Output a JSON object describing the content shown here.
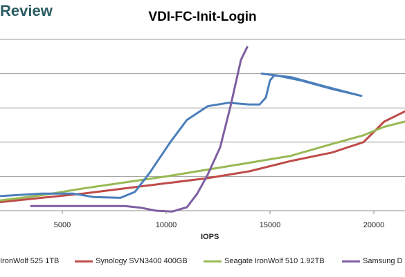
{
  "brand": {
    "text": "Review"
  },
  "chart_data": {
    "type": "line",
    "title": "VDI-FC-Init-Login",
    "xlabel": "IOPS",
    "ylabel": "",
    "x_ticks": [
      5000,
      10000,
      15000,
      20000
    ],
    "xlim": [
      2000,
      21500
    ],
    "ylim": [
      0,
      1
    ],
    "grid": "horizontal",
    "legend": "bottom",
    "series": [
      {
        "name": "IronWolf 525 1TB",
        "color": "#4a7ebb",
        "x": [
          2000,
          4000,
          5500,
          6500,
          7800,
          8500,
          9200,
          10200,
          11000,
          12000,
          13000,
          14000,
          14500,
          14800,
          15000,
          15200,
          16000,
          17500,
          19400,
          18000,
          16500,
          15300,
          14600
        ],
        "y": [
          0.085,
          0.1,
          0.1,
          0.08,
          0.075,
          0.11,
          0.22,
          0.4,
          0.53,
          0.61,
          0.63,
          0.62,
          0.62,
          0.66,
          0.76,
          0.79,
          0.78,
          0.73,
          0.67,
          0.71,
          0.76,
          0.79,
          0.8
        ]
      },
      {
        "name": "Synology SVN3400 400GB",
        "color": "#be4b48",
        "x": [
          2000,
          4000,
          6000,
          8000,
          10000,
          12000,
          14000,
          16000,
          18000,
          19500,
          20500,
          21500
        ],
        "y": [
          0.05,
          0.075,
          0.1,
          0.13,
          0.16,
          0.19,
          0.23,
          0.29,
          0.34,
          0.4,
          0.52,
          0.58
        ]
      },
      {
        "name": "Seagate IronWolf 510 1.92TB",
        "color": "#98b954",
        "x": [
          2000,
          4000,
          6000,
          8000,
          10000,
          12000,
          14000,
          16000,
          18000,
          19500,
          20500,
          21500
        ],
        "y": [
          0.06,
          0.09,
          0.13,
          0.165,
          0.2,
          0.24,
          0.28,
          0.32,
          0.39,
          0.44,
          0.49,
          0.52
        ]
      },
      {
        "name": "Samsung D",
        "color": "#7d5fa0",
        "x": [
          3500,
          5000,
          7000,
          8000,
          8800,
          9500,
          10300,
          11000,
          11500,
          12000,
          12600,
          13100,
          13600,
          13900
        ],
        "y": [
          0.027,
          0.027,
          0.027,
          0.027,
          0.017,
          0.0,
          -0.005,
          0.02,
          0.1,
          0.21,
          0.37,
          0.61,
          0.88,
          0.955
        ]
      }
    ]
  }
}
